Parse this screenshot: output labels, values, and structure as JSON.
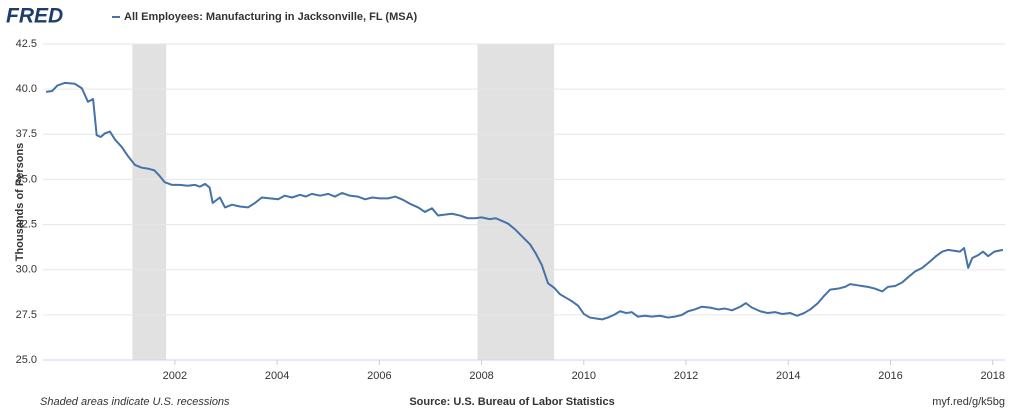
{
  "chart_data": {
    "type": "line",
    "logo": "FRED",
    "title": "All Employees: Manufacturing in Jacksonville, FL (MSA)",
    "y_label": "Thousands of Persons",
    "footer_left": "Shaded areas indicate U.S. recessions",
    "footer_center": "Source: U.S. Bureau of Labor Statistics",
    "footer_right": "myf.red/g/k5bg",
    "xlim": [
      1999.42,
      2018.24
    ],
    "ylim": [
      25,
      42.5
    ],
    "xticks": [
      2002,
      2004,
      2006,
      2008,
      2010,
      2012,
      2014,
      2016,
      2018
    ],
    "yticks": [
      {
        "value": 25,
        "label": "25.0"
      },
      27.5,
      {
        "value": 30,
        "label": "30.0"
      },
      32.5,
      {
        "value": 35,
        "label": "35.0"
      },
      37.5,
      {
        "value": 40,
        "label": "40.0"
      },
      42.5
    ],
    "grid": true,
    "recessions": [
      [
        2001.17,
        2001.83
      ],
      [
        2007.92,
        2009.42
      ]
    ],
    "recession_color": "#e1e1e1",
    "x": [
      1999.48,
      1999.6,
      1999.7,
      1999.85,
      2000.04,
      2000.18,
      2000.3,
      2000.4,
      2000.47,
      2000.55,
      2000.63,
      2000.73,
      2000.83,
      2000.96,
      2001.08,
      2001.22,
      2001.35,
      2001.47,
      2001.6,
      2001.7,
      2001.8,
      2001.94,
      2002.1,
      2002.25,
      2002.39,
      2002.49,
      2002.59,
      2002.68,
      2002.74,
      2002.88,
      2002.98,
      2003.12,
      2003.27,
      2003.43,
      2003.57,
      2003.7,
      2003.86,
      2004.02,
      2004.15,
      2004.29,
      2004.45,
      2004.56,
      2004.68,
      2004.84,
      2005.0,
      2005.13,
      2005.27,
      2005.42,
      2005.58,
      2005.72,
      2005.86,
      2006.01,
      2006.17,
      2006.31,
      2006.44,
      2006.6,
      2006.76,
      2006.89,
      2007.03,
      2007.15,
      2007.28,
      2007.42,
      2007.58,
      2007.73,
      2007.87,
      2008.0,
      2008.16,
      2008.28,
      2008.4,
      2008.52,
      2008.65,
      2008.79,
      2008.95,
      2009.06,
      2009.18,
      2009.3,
      2009.42,
      2009.53,
      2009.65,
      2009.77,
      2009.89,
      2010.0,
      2010.12,
      2010.24,
      2010.36,
      2010.47,
      2010.59,
      2010.71,
      2010.83,
      2010.94,
      2011.06,
      2011.2,
      2011.33,
      2011.49,
      2011.65,
      2011.78,
      2011.92,
      2012.04,
      2012.17,
      2012.31,
      2012.47,
      2012.63,
      2012.76,
      2012.9,
      2013.06,
      2013.17,
      2013.29,
      2013.45,
      2013.6,
      2013.74,
      2013.88,
      2014.04,
      2014.17,
      2014.31,
      2014.43,
      2014.58,
      2014.7,
      2014.82,
      2014.97,
      2015.11,
      2015.21,
      2015.33,
      2015.44,
      2015.56,
      2015.7,
      2015.84,
      2015.95,
      2016.09,
      2016.23,
      2016.35,
      2016.48,
      2016.62,
      2016.77,
      2016.89,
      2017.01,
      2017.13,
      2017.24,
      2017.36,
      2017.44,
      2017.52,
      2017.6,
      2017.71,
      2017.81,
      2017.91,
      2018.03,
      2018.2
    ],
    "series": [
      {
        "name": "All Employees: Manufacturing in Jacksonville, FL (MSA)",
        "color": "#4572a7",
        "values": [
          39.85,
          39.9,
          40.2,
          40.35,
          40.3,
          40.05,
          39.3,
          39.45,
          37.45,
          37.35,
          37.55,
          37.65,
          37.2,
          36.8,
          36.3,
          35.8,
          35.65,
          35.6,
          35.5,
          35.2,
          34.85,
          34.7,
          34.7,
          34.65,
          34.7,
          34.6,
          34.75,
          34.55,
          33.7,
          34.0,
          33.45,
          33.6,
          33.5,
          33.45,
          33.7,
          34.0,
          33.95,
          33.9,
          34.1,
          34.0,
          34.15,
          34.05,
          34.2,
          34.1,
          34.2,
          34.05,
          34.25,
          34.1,
          34.05,
          33.9,
          34.0,
          33.95,
          33.95,
          34.05,
          33.9,
          33.65,
          33.45,
          33.2,
          33.4,
          33.0,
          33.05,
          33.1,
          33.0,
          32.85,
          32.85,
          32.9,
          32.8,
          32.85,
          32.7,
          32.55,
          32.25,
          31.85,
          31.4,
          30.9,
          30.25,
          29.25,
          29.0,
          28.65,
          28.45,
          28.25,
          28.0,
          27.55,
          27.35,
          27.3,
          27.25,
          27.35,
          27.5,
          27.7,
          27.6,
          27.65,
          27.4,
          27.45,
          27.4,
          27.45,
          27.35,
          27.4,
          27.5,
          27.7,
          27.8,
          27.95,
          27.9,
          27.8,
          27.85,
          27.75,
          27.95,
          28.15,
          27.9,
          27.7,
          27.6,
          27.65,
          27.55,
          27.6,
          27.45,
          27.6,
          27.8,
          28.15,
          28.55,
          28.9,
          28.95,
          29.05,
          29.2,
          29.15,
          29.1,
          29.05,
          28.95,
          28.8,
          29.05,
          29.1,
          29.3,
          29.6,
          29.9,
          30.1,
          30.45,
          30.75,
          31.0,
          31.1,
          31.05,
          31.0,
          31.2,
          30.1,
          30.65,
          30.8,
          31.0,
          30.75,
          31.0,
          31.1
        ]
      }
    ]
  }
}
